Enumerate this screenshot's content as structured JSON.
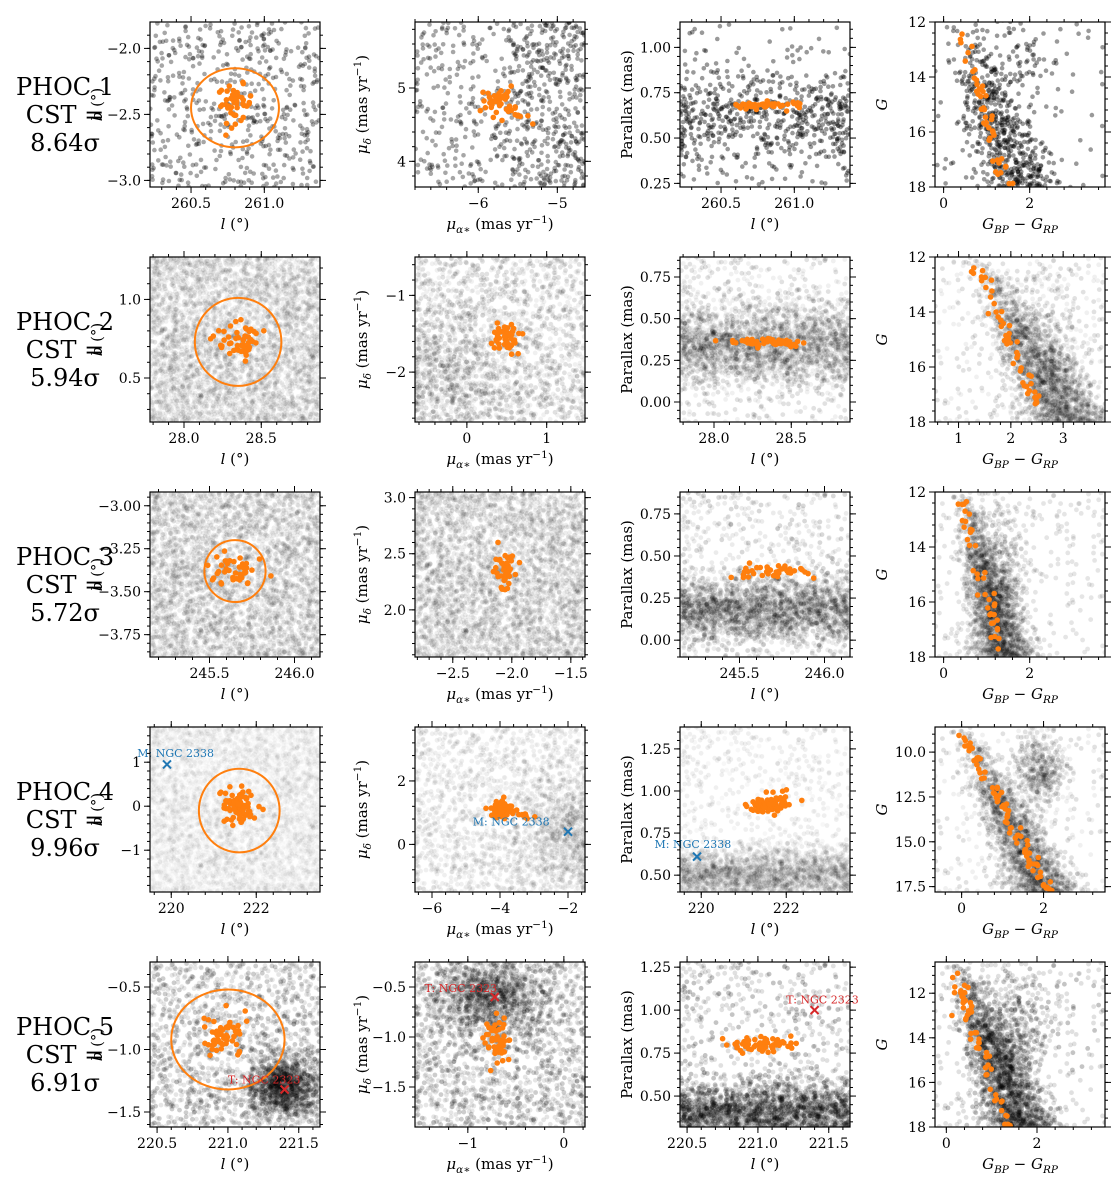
{
  "colors": {
    "member": "#ff7f0e",
    "field": "#000000",
    "match": "#1f77b4",
    "tidal": "#d62728"
  },
  "rows": [
    {
      "name": "PHOC 1",
      "cst": "CST = 8.64σ"
    },
    {
      "name": "PHOC 2",
      "cst": "CST = 5.94σ"
    },
    {
      "name": "PHOC 3",
      "cst": "CST = 5.72σ"
    },
    {
      "name": "PHOC 4",
      "cst": "CST = 9.96σ"
    },
    {
      "name": "PHOC 5",
      "cst": "CST = 6.91σ"
    }
  ],
  "chart_data": [
    {
      "type": "scatter",
      "row": 0,
      "col": 0,
      "xlabel": "l (°)",
      "ylabel": "b (°)",
      "xlim": [
        260.22,
        261.38
      ],
      "ylim": [
        -3.05,
        -1.8
      ],
      "xticks": [
        260.5,
        261.0
      ],
      "yticks": [
        -3.0,
        -2.5,
        -2.0
      ],
      "field_alpha": 0.35,
      "field_n": 520,
      "field_dist": "uniform",
      "members": {
        "center": [
          260.8,
          -2.42
        ],
        "spread": [
          0.06,
          0.07
        ],
        "n": 45
      },
      "circle": {
        "center": [
          260.8,
          -2.45
        ],
        "radius": 0.3
      }
    },
    {
      "type": "scatter",
      "row": 0,
      "col": 1,
      "xlabel": "μ_α* (mas yr⁻¹)",
      "ylabel": "μ_δ (mas yr⁻¹)",
      "xlim": [
        -6.8,
        -4.65
      ],
      "ylim": [
        3.65,
        5.9
      ],
      "xticks": [
        -6,
        -5
      ],
      "yticks": [
        4,
        5
      ],
      "field_alpha": 0.35,
      "field_n": 700,
      "field_dist": "uniform-grad",
      "members": {
        "center": [
          -5.75,
          4.82
        ],
        "spread": [
          0.1,
          0.1
        ],
        "n": 45,
        "tail": [
          -5.3,
          4.5,
          10
        ]
      }
    },
    {
      "type": "scatter",
      "row": 0,
      "col": 2,
      "xlabel": "l (°)",
      "ylabel": "Parallax (mas)",
      "xlim": [
        260.22,
        261.38
      ],
      "ylim": [
        0.23,
        1.14
      ],
      "xticks": [
        260.5,
        261.0
      ],
      "yticks": [
        0.25,
        0.5,
        0.75,
        1.0
      ],
      "field_alpha": 0.4,
      "field_n": 650,
      "field_dist": "band",
      "field_band": [
        0.62,
        0.13
      ],
      "members": {
        "center": [
          260.8,
          0.68
        ],
        "spread": [
          0.14,
          0.012
        ],
        "n": 45
      }
    },
    {
      "type": "scatter",
      "row": 0,
      "col": 3,
      "xlabel": "G_BP − G_RP",
      "ylabel": "G",
      "xlim": [
        -0.2,
        3.75
      ],
      "ylim": [
        18,
        12
      ],
      "xticks": [
        0,
        2
      ],
      "yticks": [
        12,
        14,
        16,
        18
      ],
      "field_alpha": 0.4,
      "field_n": 700,
      "field_dist": "cmd",
      "cmd": {
        "x0": 0.4,
        "slope": 0.24,
        "width": 0.35,
        "giants": [
          1.6,
          13.0,
          0.6,
          1.5
        ]
      },
      "members": {
        "x0": 0.35,
        "slope": 0.2,
        "n": 45
      }
    },
    {
      "type": "scatter",
      "row": 1,
      "col": 0,
      "xlabel": "l (°)",
      "ylabel": "b (°)",
      "xlim": [
        27.78,
        28.88
      ],
      "ylim": [
        0.22,
        1.27
      ],
      "xticks": [
        28.0,
        28.5
      ],
      "yticks": [
        0.5,
        1.0
      ],
      "field_alpha": 0.06,
      "field_n": 4000,
      "field_dist": "uniform",
      "members": {
        "center": [
          28.35,
          0.74
        ],
        "spread": [
          0.07,
          0.05
        ],
        "n": 50
      },
      "circle": {
        "center": [
          28.35,
          0.73
        ],
        "radius": 0.28
      }
    },
    {
      "type": "scatter",
      "row": 1,
      "col": 1,
      "xlabel": "μ_α* (mas yr⁻¹)",
      "ylabel": "μ_δ (mas yr⁻¹)",
      "xlim": [
        -0.65,
        1.48
      ],
      "ylim": [
        -2.65,
        -0.5
      ],
      "xticks": [
        0,
        1
      ],
      "yticks": [
        -2,
        -1
      ],
      "field_alpha": 0.06,
      "field_n": 4000,
      "field_dist": "blob",
      "field_blob": [
        -0.5,
        -2.1,
        0.7,
        0.55
      ],
      "members": {
        "center": [
          0.47,
          -1.55
        ],
        "spread": [
          0.09,
          0.1
        ],
        "n": 50
      }
    },
    {
      "type": "scatter",
      "row": 1,
      "col": 2,
      "xlabel": "l (°)",
      "ylabel": "Parallax (mas)",
      "xlim": [
        27.78,
        28.88
      ],
      "ylim": [
        -0.12,
        0.87
      ],
      "xticks": [
        28.0,
        28.5
      ],
      "yticks": [
        0.0,
        0.25,
        0.5,
        0.75
      ],
      "field_alpha": 0.06,
      "field_n": 4000,
      "field_dist": "band",
      "field_band": [
        0.34,
        0.12
      ],
      "members": {
        "center": [
          28.35,
          0.36
        ],
        "spread": [
          0.13,
          0.015
        ],
        "n": 50
      }
    },
    {
      "type": "scatter",
      "row": 1,
      "col": 3,
      "xlabel": "G_BP − G_RP",
      "ylabel": "G",
      "xlim": [
        0.55,
        3.8
      ],
      "ylim": [
        18,
        12
      ],
      "xticks": [
        1,
        2,
        3
      ],
      "yticks": [
        12,
        14,
        16,
        18
      ],
      "field_alpha": 0.06,
      "field_n": 4000,
      "field_dist": "cmd",
      "cmd": {
        "x0": 1.4,
        "slope": 0.3,
        "width": 0.3,
        "giants": [
          2.7,
          15.5,
          0.4,
          2.0
        ]
      },
      "members": {
        "x0": 1.35,
        "slope": 0.22,
        "n": 50
      }
    },
    {
      "type": "scatter",
      "row": 2,
      "col": 0,
      "xlabel": "l (°)",
      "ylabel": "b (°)",
      "xlim": [
        245.15,
        246.15
      ],
      "ylim": [
        -3.88,
        -2.92
      ],
      "xticks": [
        245.5,
        246.0
      ],
      "yticks": [
        -3.75,
        -3.5,
        -3.25,
        -3.0
      ],
      "field_alpha": 0.07,
      "field_n": 3500,
      "field_dist": "uniform",
      "members": {
        "center": [
          245.63,
          -3.38
        ],
        "spread": [
          0.07,
          0.05
        ],
        "n": 40
      },
      "circle": {
        "center": [
          245.65,
          -3.38
        ],
        "radius": 0.18
      }
    },
    {
      "type": "scatter",
      "row": 2,
      "col": 1,
      "xlabel": "μ_α* (mas yr⁻¹)",
      "ylabel": "μ_δ (mas yr⁻¹)",
      "xlim": [
        -2.82,
        -1.38
      ],
      "ylim": [
        1.58,
        3.05
      ],
      "xticks": [
        -2.5,
        -2.0,
        -1.5
      ],
      "yticks": [
        2.0,
        2.5,
        3.0
      ],
      "field_alpha": 0.07,
      "field_n": 3500,
      "field_dist": "uniform",
      "members": {
        "center": [
          -2.05,
          2.35
        ],
        "spread": [
          0.05,
          0.08
        ],
        "n": 40
      }
    },
    {
      "type": "scatter",
      "row": 2,
      "col": 2,
      "xlabel": "l (°)",
      "ylabel": "Parallax (mas)",
      "xlim": [
        245.15,
        246.15
      ],
      "ylim": [
        -0.1,
        0.88
      ],
      "xticks": [
        245.5,
        246.0
      ],
      "yticks": [
        0.0,
        0.25,
        0.5,
        0.75
      ],
      "field_alpha": 0.08,
      "field_n": 3500,
      "field_dist": "band",
      "field_band": [
        0.18,
        0.1
      ],
      "members": {
        "center": [
          245.65,
          0.41
        ],
        "spread": [
          0.12,
          0.02
        ],
        "n": 40
      }
    },
    {
      "type": "scatter",
      "row": 2,
      "col": 3,
      "xlabel": "G_BP − G_RP",
      "ylabel": "G",
      "xlim": [
        -0.2,
        3.75
      ],
      "ylim": [
        18,
        12
      ],
      "xticks": [
        0,
        2
      ],
      "yticks": [
        12,
        14,
        16,
        18
      ],
      "field_alpha": 0.1,
      "field_n": 2500,
      "field_dist": "cmd",
      "cmd": {
        "x0": 0.5,
        "slope": 0.16,
        "width": 0.25,
        "giants": [
          1.35,
          15.0,
          0.3,
          1.6
        ]
      },
      "members": {
        "x0": 0.4,
        "slope": 0.17,
        "n": 40
      }
    },
    {
      "type": "scatter",
      "row": 3,
      "col": 0,
      "xlabel": "l (°)",
      "ylabel": "b (°)",
      "xlim": [
        219.5,
        223.5
      ],
      "ylim": [
        -1.95,
        1.8
      ],
      "xticks": [
        220,
        222
      ],
      "yticks": [
        -1,
        0,
        1
      ],
      "field_alpha": 0.02,
      "field_n": 6000,
      "field_dist": "uniform",
      "members": {
        "center": [
          221.6,
          0.0
        ],
        "spread": [
          0.2,
          0.2
        ],
        "n": 80
      },
      "circle": {
        "center": [
          221.6,
          -0.1
        ],
        "radius": 0.95
      },
      "marker": {
        "x": 219.9,
        "y": 0.95,
        "label": "M: NGC 2338",
        "color": "#1f77b4",
        "lx": 219.2,
        "ly": 1.12
      }
    },
    {
      "type": "scatter",
      "row": 3,
      "col": 1,
      "xlabel": "μ_α* (mas yr⁻¹)",
      "ylabel": "μ_δ (mas yr⁻¹)",
      "xlim": [
        -6.5,
        -1.5
      ],
      "ylim": [
        -1.5,
        3.7
      ],
      "xticks": [
        -6,
        -4,
        -2
      ],
      "yticks": [
        0,
        2
      ],
      "field_alpha": 0.03,
      "field_n": 5000,
      "field_dist": "blob",
      "field_blob": [
        -1.6,
        0.3,
        1.0,
        1.0
      ],
      "members": {
        "center": [
          -3.95,
          1.1
        ],
        "spread": [
          0.15,
          0.15
        ],
        "n": 80,
        "tail": [
          -3.0,
          0.8,
          15
        ]
      },
      "marker": {
        "x": -2.0,
        "y": 0.4,
        "label": "M: NGC 2338",
        "color": "#1f77b4",
        "lx": -4.8,
        "ly": 0.6
      }
    },
    {
      "type": "scatter",
      "row": 3,
      "col": 2,
      "xlabel": "l (°)",
      "ylabel": "Parallax (mas)",
      "xlim": [
        219.5,
        223.5
      ],
      "ylim": [
        0.4,
        1.38
      ],
      "xticks": [
        220,
        222
      ],
      "yticks": [
        0.5,
        0.75,
        1.0,
        1.25
      ],
      "field_alpha": 0.03,
      "field_n": 5000,
      "field_dist": "band",
      "field_band": [
        0.5,
        0.08
      ],
      "members": {
        "center": [
          221.6,
          0.92
        ],
        "spread": [
          0.2,
          0.03
        ],
        "n": 80
      },
      "marker": {
        "x": 219.9,
        "y": 0.61,
        "label": "M: NGC 2338",
        "color": "#1f77b4",
        "lx": 218.9,
        "ly": 0.66
      }
    },
    {
      "type": "scatter",
      "row": 3,
      "col": 3,
      "xlabel": "G_BP − G_RP",
      "ylabel": "G",
      "xlim": [
        -0.65,
        3.5
      ],
      "ylim": [
        17.8,
        8.6
      ],
      "xticks": [
        0,
        2
      ],
      "yticks": [
        10.0,
        12.5,
        15.0,
        17.5
      ],
      "field_alpha": 0.06,
      "field_n": 4000,
      "field_dist": "cmd",
      "cmd": {
        "x0": 0.05,
        "slope": 0.22,
        "width": 0.3,
        "giants": [
          1.9,
          11.0,
          0.3,
          1.0
        ]
      },
      "members": {
        "x0": 0.0,
        "slope": 0.24,
        "n": 80
      }
    },
    {
      "type": "scatter",
      "row": 4,
      "col": 0,
      "xlabel": "l (°)",
      "ylabel": "b (°)",
      "xlim": [
        220.45,
        221.65
      ],
      "ylim": [
        -1.62,
        -0.3
      ],
      "xticks": [
        220.5,
        221.0,
        221.5
      ],
      "yticks": [
        -1.5,
        -1.0,
        -0.5
      ],
      "field_alpha": 0.1,
      "field_n": 3500,
      "field_dist": "blob",
      "field_blob": [
        221.4,
        -1.3,
        0.12,
        0.12
      ],
      "members": {
        "center": [
          220.98,
          -0.88
        ],
        "spread": [
          0.09,
          0.09
        ],
        "n": 55
      },
      "circle": {
        "center": [
          221.0,
          -0.92
        ],
        "radius": 0.4
      },
      "marker": {
        "x": 221.4,
        "y": -1.32,
        "label": "T: NGC 2323",
        "color": "#d62728",
        "lx": 221.0,
        "ly": -1.27
      }
    },
    {
      "type": "scatter",
      "row": 4,
      "col": 1,
      "xlabel": "μ_α* (mas yr⁻¹)",
      "ylabel": "μ_δ (mas yr⁻¹)",
      "xlim": [
        -1.55,
        0.22
      ],
      "ylim": [
        -1.9,
        -0.25
      ],
      "xticks": [
        -1,
        0
      ],
      "yticks": [
        -1.5,
        -1.0,
        -0.5
      ],
      "field_alpha": 0.1,
      "field_n": 3500,
      "field_dist": "blob",
      "field_blob": [
        -0.75,
        -0.6,
        0.3,
        0.2
      ],
      "members": {
        "center": [
          -0.68,
          -1.05
        ],
        "spread": [
          0.07,
          0.12
        ],
        "n": 55
      },
      "marker": {
        "x": -0.72,
        "y": -0.6,
        "label": "T: NGC 2323",
        "color": "#d62728",
        "lx": -1.45,
        "ly": -0.55
      }
    },
    {
      "type": "scatter",
      "row": 4,
      "col": 2,
      "xlabel": "l (°)",
      "ylabel": "Parallax (mas)",
      "xlim": [
        220.45,
        221.65
      ],
      "ylim": [
        0.32,
        1.28
      ],
      "xticks": [
        220.5,
        221.0,
        221.5
      ],
      "yticks": [
        0.5,
        0.75,
        1.0,
        1.25
      ],
      "field_alpha": 0.12,
      "field_n": 3500,
      "field_dist": "band",
      "field_band": [
        0.4,
        0.09
      ],
      "members": {
        "center": [
          221.0,
          0.8
        ],
        "spread": [
          0.12,
          0.02
        ],
        "n": 55
      },
      "marker": {
        "x": 221.4,
        "y": 1.0,
        "label": "T: NGC 2323",
        "color": "#d62728",
        "lx": 221.2,
        "ly": 1.04
      }
    },
    {
      "type": "scatter",
      "row": 4,
      "col": 3,
      "xlabel": "G_BP − G_RP",
      "ylabel": "G",
      "xlim": [
        -0.25,
        3.5
      ],
      "ylim": [
        18,
        10.6
      ],
      "xticks": [
        0,
        2
      ],
      "yticks": [
        12,
        14,
        16,
        18
      ],
      "field_alpha": 0.12,
      "field_n": 3000,
      "field_dist": "cmd",
      "cmd": {
        "x0": 0.3,
        "slope": 0.19,
        "width": 0.28,
        "giants": [
          1.5,
          13.5,
          0.4,
          1.5
        ]
      },
      "members": {
        "x0": 0.15,
        "slope": 0.17,
        "n": 55
      }
    }
  ]
}
